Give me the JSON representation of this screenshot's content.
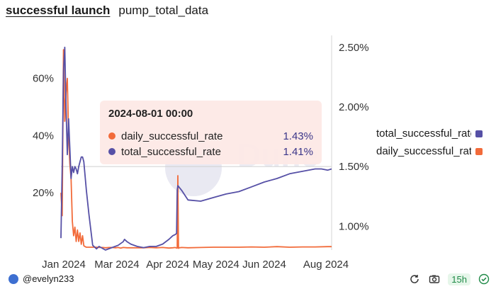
{
  "tabs": [
    {
      "label": "successful launch",
      "active": true
    },
    {
      "label": "pump_total_data",
      "active": false
    }
  ],
  "tooltip": {
    "title": "2024-08-01 00:00",
    "rows": [
      {
        "label": "daily_successful_rate",
        "value": "1.43%",
        "color": "#f26b3a"
      },
      {
        "label": "total_successful_rate",
        "value": "1.41%",
        "color": "#5650a6"
      }
    ]
  },
  "legend": [
    {
      "label": "total_successful_rate",
      "color": "#5650a6"
    },
    {
      "label": "daily_successful_rate",
      "color": "#f26b3a"
    }
  ],
  "footer": {
    "username": "@evelyn233",
    "badge": "15h"
  },
  "chart_data": {
    "type": "line",
    "x_ticks": [
      "Jan 2024",
      "Mar 2024",
      "Apr 2024",
      "May 2024",
      "Jun 2024",
      "Aug 2024"
    ],
    "y_left_ticks": [
      "20%",
      "40%",
      "60%"
    ],
    "y_right_ticks": [
      "1.00%",
      "1.50%",
      "2.00%",
      "2.50%"
    ],
    "y_left_range": [
      0,
      75
    ],
    "y_right_range": [
      0.8,
      2.6
    ],
    "watermark": "Dune",
    "series": [
      {
        "name": "daily_successful_rate",
        "axis": "left",
        "color": "#f26b3a",
        "x": [
          0,
          1,
          2,
          3,
          4,
          5,
          6,
          7,
          8,
          9,
          10,
          11,
          12,
          13,
          14,
          15,
          16,
          17,
          18,
          19,
          20,
          22,
          25,
          28,
          30,
          33,
          35,
          38,
          40,
          43,
          45,
          47,
          49,
          52,
          55,
          60,
          65,
          70,
          75,
          80,
          85,
          88,
          90,
          91,
          91.5,
          92,
          92.5,
          93,
          95,
          100,
          110,
          120,
          130,
          140,
          150,
          160,
          170,
          180,
          190,
          200,
          210,
          213
        ],
        "y": [
          20,
          12,
          70,
          45,
          55,
          60,
          40,
          30,
          25,
          10,
          5,
          8,
          3,
          7,
          3,
          6,
          2,
          5,
          1.5,
          1.2,
          1,
          1,
          1,
          1,
          0.9,
          0.9,
          0.8,
          0.9,
          0.9,
          0.8,
          0.9,
          0.7,
          0.9,
          0.8,
          0.8,
          0.8,
          0.8,
          0.9,
          0.8,
          0.9,
          0.7,
          0.8,
          0.9,
          0.7,
          0.7,
          26,
          0.6,
          0.8,
          0.9,
          0.8,
          0.9,
          1,
          1,
          1,
          1.1,
          1,
          1.2,
          1,
          1.1,
          1.1,
          1.2,
          1.2
        ]
      },
      {
        "name": "total_successful_rate",
        "axis": "right",
        "color": "#5650a6",
        "x": [
          0,
          1,
          2,
          3,
          4,
          5,
          6,
          7,
          8,
          9,
          10,
          11,
          12,
          13,
          14,
          15,
          16,
          17,
          18,
          19,
          20,
          22,
          25,
          27,
          28,
          30,
          35,
          40,
          45,
          49,
          50,
          52,
          55,
          60,
          65,
          70,
          75,
          80,
          85,
          88,
          90,
          91,
          91.5,
          92,
          95,
          100,
          110,
          120,
          130,
          140,
          150,
          160,
          170,
          180,
          190,
          200,
          205,
          210,
          213
        ],
        "y": [
          0.9,
          1.5,
          2.3,
          2.5,
          2.0,
          1.6,
          1.9,
          1.65,
          1.4,
          1.5,
          1.45,
          1.5,
          1.48,
          1.44,
          1.5,
          1.54,
          1.58,
          1.58,
          1.54,
          1.42,
          1.3,
          1.1,
          0.84,
          0.82,
          0.81,
          0.83,
          0.8,
          0.82,
          0.84,
          0.87,
          0.89,
          0.87,
          0.85,
          0.83,
          0.82,
          0.83,
          0.83,
          0.85,
          0.89,
          0.92,
          0.93,
          0.94,
          1.3,
          1.34,
          1.3,
          1.22,
          1.21,
          1.24,
          1.27,
          1.29,
          1.33,
          1.37,
          1.4,
          1.44,
          1.46,
          1.48,
          1.48,
          1.47,
          1.48
        ]
      }
    ]
  }
}
